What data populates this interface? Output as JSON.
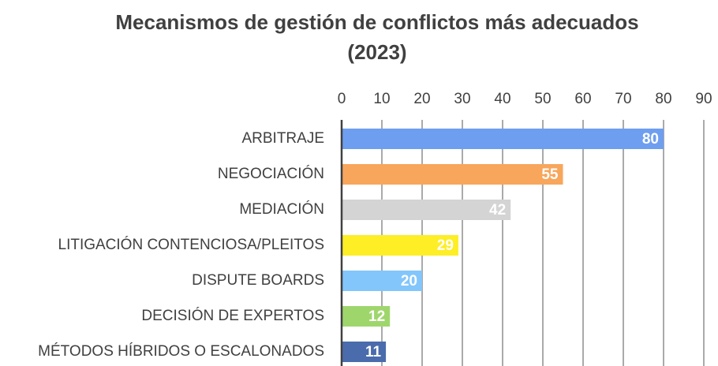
{
  "chart_data": {
    "type": "bar",
    "orientation": "horizontal",
    "title": [
      "Mecanismos de gestión de conflictos más adecuados",
      "(2023)"
    ],
    "categories": [
      "ARBITRAJE",
      "NEGOCIACIÓN",
      "MEDIACIÓN",
      "LITIGACIÓN CONTENCIOSA/PLEITOS",
      "DISPUTE BOARDS",
      "DECISIÓN DE EXPERTOS",
      "MÉTODOS HÍBRIDOS O ESCALONADOS"
    ],
    "values": [
      80,
      55,
      42,
      29,
      20,
      12,
      11
    ],
    "colors": [
      "#6e9ef0",
      "#f8a65c",
      "#d4d4d4",
      "#fdee25",
      "#83c6fc",
      "#9fd66c",
      "#4a6cac"
    ],
    "xlim": [
      0,
      90
    ],
    "xticks": [
      0,
      10,
      20,
      30,
      40,
      50,
      60,
      70,
      80,
      90
    ],
    "grid": true
  }
}
